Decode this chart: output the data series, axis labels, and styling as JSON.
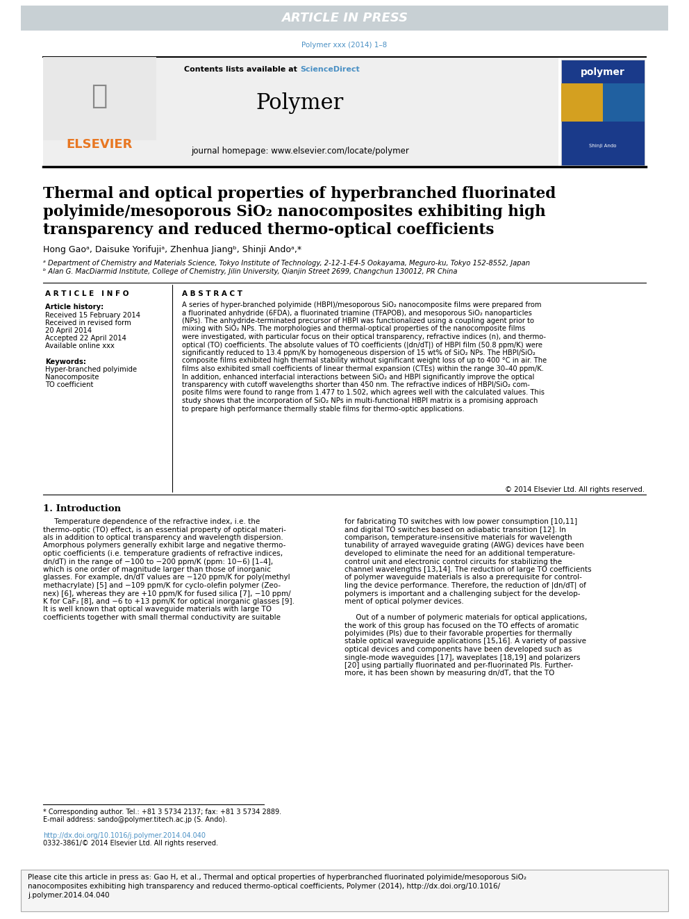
{
  "article_in_press_text": "ARTICLE IN PRESS",
  "article_in_press_bg": "#c8d0d4",
  "article_in_press_color": "#ffffff",
  "journal_ref": "Polymer xxx (2014) 1–8",
  "journal_ref_color": "#4a90c4",
  "contents_text": "Contents lists available at ",
  "sciencedirect_text": "ScienceDirect",
  "sciencedirect_color": "#4a90c4",
  "journal_title": "Polymer",
  "journal_homepage": "journal homepage: www.elsevier.com/locate/polymer",
  "elsevier_color": "#e87722",
  "header_bg": "#efefef",
  "title_line1": "Thermal and optical properties of hyperbranched fluorinated",
  "title_line2": "polyimide/mesoporous SiO₂ nanocomposites exhibiting high",
  "title_line3": "transparency and reduced thermo-optical coefficients",
  "authors": "Hong Gaoᵃ, Daisuke Yorifujiᵃ, Zhenhua Jiangᵇ, Shinji Andoᵃ,*",
  "affil_a": "ᵃ Department of Chemistry and Materials Science, Tokyo Institute of Technology, 2-12-1-E4-5 Ookayama, Meguro-ku, Tokyo 152-8552, Japan",
  "affil_b": "ᵇ Alan G. MacDiarmid Institute, College of Chemistry, Jilin University, Qianjin Street 2699, Changchun 130012, PR China",
  "article_info_title": "A R T I C L E   I N F O",
  "article_history": "Article history:",
  "received1": "Received 15 February 2014",
  "received2a": "Received in revised form",
  "received2b": "20 April 2014",
  "accepted": "Accepted 22 April 2014",
  "available": "Available online xxx",
  "keywords_title": "Keywords:",
  "keyword1": "Hyper-branched polyimide",
  "keyword2": "Nanocomposite",
  "keyword3": "TO coefficient",
  "abstract_title": "A B S T R A C T",
  "abstract_lines": [
    "A series of hyper-branched polyimide (HBPI)/mesoporous SiO₂ nanocomposite films were prepared from",
    "a fluorinated anhydride (6FDA), a fluorinated triamine (TFAPOB), and mesoporous SiO₂ nanoparticles",
    "(NPs). The anhydride-terminated precursor of HBPI was functionalized using a coupling agent prior to",
    "mixing with SiO₂ NPs. The morphologies and thermal-optical properties of the nanocomposite films",
    "were investigated, with particular focus on their optical transparency, refractive indices (n), and thermo-",
    "optical (TO) coefficients. The absolute values of TO coefficients (|dn/dT|) of HBPI film (50.8 ppm/K) were",
    "significantly reduced to 13.4 ppm/K by homogeneous dispersion of 15 wt% of SiO₂ NPs. The HBPI/SiO₂",
    "composite films exhibited high thermal stability without significant weight loss of up to 400 °C in air. The",
    "films also exhibited small coefficients of linear thermal expansion (CTEs) within the range 30–40 ppm/K.",
    "In addition, enhanced interfacial interactions between SiO₂ and HBPI significantly improve the optical",
    "transparency with cutoff wavelengths shorter than 450 nm. The refractive indices of HBPI/SiO₂ com-",
    "posite films were found to range from 1.477 to 1.502, which agrees well with the calculated values. This",
    "study shows that the incorporation of SiO₂ NPs in multi-functional HBPI matrix is a promising approach",
    "to prepare high performance thermally stable films for thermo-optic applications."
  ],
  "copyright": "© 2014 Elsevier Ltd. All rights reserved.",
  "section1_title": "1. Introduction",
  "intro_col1_lines": [
    "     Temperature dependence of the refractive index, i.e. the",
    "thermo-optic (TO) effect, is an essential property of optical materi-",
    "als in addition to optical transparency and wavelength dispersion.",
    "Amorphous polymers generally exhibit large and negative thermo-",
    "optic coefficients (i.e. temperature gradients of refractive indices,",
    "dn/dT) in the range of −100 to −200 ppm/K (ppm: 10−6) [1–4],",
    "which is one order of magnitude larger than those of inorganic",
    "glasses. For example, dn/dT values are −120 ppm/K for poly(methyl",
    "methacrylate) [5] and −109 ppm/K for cyclo-olefin polymer (Zeo-",
    "nex) [6], whereas they are +10 ppm/K for fused silica [7], −10 ppm/",
    "K for CaF₂ [8], and −6 to +13 ppm/K for optical inorganic glasses [9].",
    "It is well known that optical waveguide materials with large TO",
    "coefficients together with small thermal conductivity are suitable"
  ],
  "intro_col2_lines": [
    "for fabricating TO switches with low power consumption [10,11]",
    "and digital TO switches based on adiabatic transition [12]. In",
    "comparison, temperature-insensitive materials for wavelength",
    "tunability of arrayed waveguide grating (AWG) devices have been",
    "developed to eliminate the need for an additional temperature-",
    "control unit and electronic control circuits for stabilizing the",
    "channel wavelengths [13,14]. The reduction of large TO coefficients",
    "of polymer waveguide materials is also a prerequisite for control-",
    "ling the device performance. Therefore, the reduction of |dn/dT| of",
    "polymers is important and a challenging subject for the develop-",
    "ment of optical polymer devices.",
    "",
    "     Out of a number of polymeric materials for optical applications,",
    "the work of this group has focused on the TO effects of aromatic",
    "polyimides (PIs) due to their favorable properties for thermally",
    "stable optical waveguide applications [15,16]. A variety of passive",
    "optical devices and components have been developed such as",
    "single-mode waveguides [17], waveplates [18,19] and polarizers",
    "[20] using partially fluorinated and per-fluorinated PIs. Further-",
    "more, it has been shown by measuring dn/dT, that the TO"
  ],
  "footnote_corresponding": "* Corresponding author. Tel.: +81 3 5734 2137; fax: +81 3 5734 2889.",
  "footnote_email": "E-mail address: sando@polymer.titech.ac.jp (S. Ando).",
  "doi_link": "http://dx.doi.org/10.1016/j.polymer.2014.04.040",
  "issn": "0332-3861/© 2014 Elsevier Ltd. All rights reserved.",
  "cite_box_lines": [
    "Please cite this article in press as: Gao H, et al., Thermal and optical properties of hyperbranched fluorinated polyimide/mesoporous SiO₂",
    "nanocomposites exhibiting high transparency and reduced thermo-optical coefficients, Polymer (2014), http://dx.doi.org/10.1016/",
    "j.polymer.2014.04.040"
  ],
  "cite_box_bg": "#f5f5f5",
  "cite_box_border": "#aaaaaa"
}
